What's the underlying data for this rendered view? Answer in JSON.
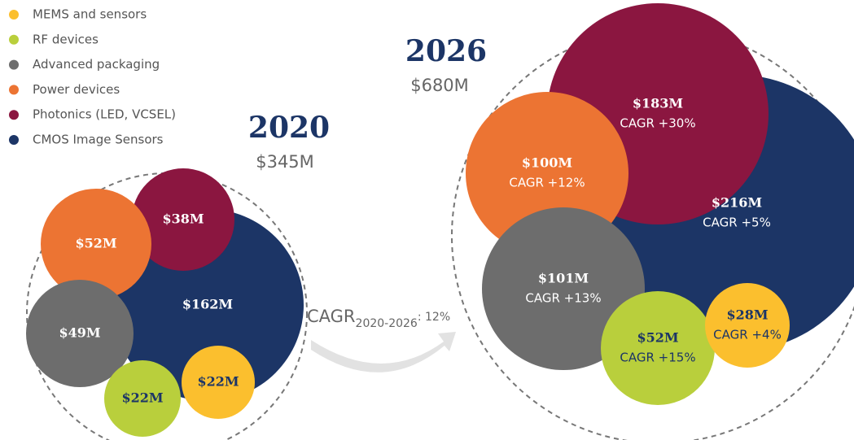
{
  "chart_data": {
    "type": "bubble",
    "categories": [
      "2020",
      "2026"
    ],
    "totals": [
      "$345M",
      "$680M"
    ],
    "annotation": {
      "text": "CAGR",
      "subscript": "2020-2026",
      "suffix": ": 12%"
    },
    "series": [
      {
        "name": "MEMS and sensors",
        "color": "#fbbf2e",
        "values": [
          22,
          28
        ],
        "value_labels": [
          "$22M",
          "$28M"
        ],
        "growth_labels": [
          null,
          "CAGR +4%"
        ]
      },
      {
        "name": "RF devices",
        "color": "#b9cf3c",
        "values": [
          22,
          52
        ],
        "value_labels": [
          "$22M",
          "$52M"
        ],
        "growth_labels": [
          null,
          "CAGR +15%"
        ]
      },
      {
        "name": "Advanced packaging",
        "color": "#6d6d6d",
        "values": [
          49,
          101
        ],
        "value_labels": [
          "$49M",
          "$101M"
        ],
        "growth_labels": [
          null,
          "CAGR +13%"
        ]
      },
      {
        "name": "Power devices",
        "color": "#ec7433",
        "values": [
          52,
          100
        ],
        "value_labels": [
          "$52M",
          "$100M"
        ],
        "growth_labels": [
          null,
          "CAGR +12%"
        ]
      },
      {
        "name": "Photonics (LED, VCSEL)",
        "color": "#8b1640",
        "values": [
          38,
          183
        ],
        "value_labels": [
          "$38M",
          "$183M"
        ],
        "growth_labels": [
          null,
          "CAGR +30%"
        ]
      },
      {
        "name": "CMOS Image Sensors",
        "color": "#1c3566",
        "values": [
          162,
          216
        ],
        "value_labels": [
          "$162M",
          "$216M"
        ],
        "growth_labels": [
          null,
          "CAGR +5%"
        ]
      }
    ]
  }
}
